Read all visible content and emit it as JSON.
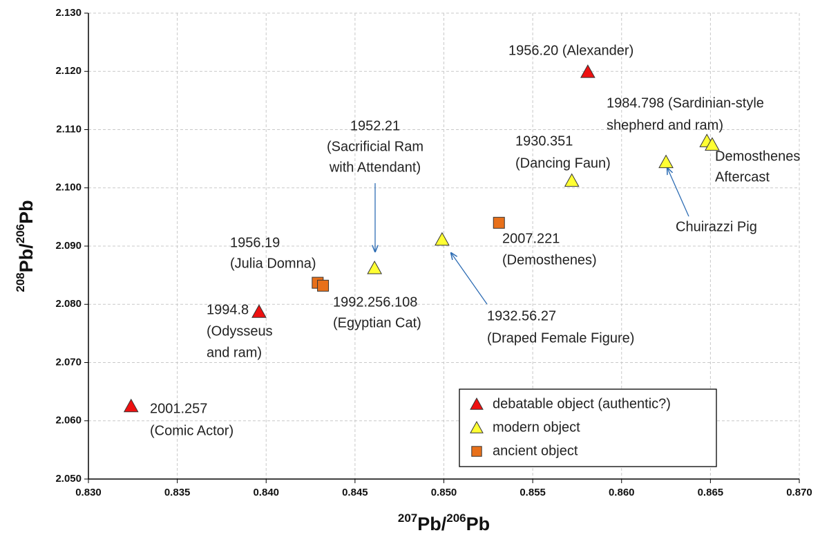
{
  "chart_data": {
    "type": "scatter",
    "xlabel": [
      "207",
      "Pb/",
      "206",
      "Pb"
    ],
    "ylabel": [
      "208",
      "Pb/",
      "206",
      "Pb"
    ],
    "xlim": [
      0.83,
      0.87
    ],
    "ylim": [
      2.05,
      2.13
    ],
    "xticks": [
      {
        "value": 0.83,
        "label": "0.830"
      },
      {
        "value": 0.835,
        "label": "0.835"
      },
      {
        "value": 0.84,
        "label": "0.840"
      },
      {
        "value": 0.845,
        "label": "0.845"
      },
      {
        "value": 0.85,
        "label": "0.850"
      },
      {
        "value": 0.855,
        "label": "0.855"
      },
      {
        "value": 0.86,
        "label": "0.860"
      },
      {
        "value": 0.865,
        "label": "0.865"
      },
      {
        "value": 0.87,
        "label": "0.870"
      }
    ],
    "yticks": [
      {
        "value": 2.05,
        "label": "2.050"
      },
      {
        "value": 2.06,
        "label": "2.060"
      },
      {
        "value": 2.07,
        "label": "2.070"
      },
      {
        "value": 2.08,
        "label": "2.080"
      },
      {
        "value": 2.09,
        "label": "2.090"
      },
      {
        "value": 2.1,
        "label": "2.100"
      },
      {
        "value": 2.11,
        "label": "2.110"
      },
      {
        "value": 2.12,
        "label": "2.120"
      },
      {
        "value": 2.13,
        "label": "2.130"
      }
    ],
    "grid": true,
    "legend": "lower right",
    "series": [
      {
        "name": "debatable object (authentic?)",
        "color": "#ee1111",
        "marker": "triangle",
        "x": [
          0.8581,
          0.8396,
          0.8324
        ],
        "values": [
          2.1199,
          2.0787,
          2.0625
        ]
      },
      {
        "name": "modern object",
        "color": "#ffff33",
        "marker": "triangle",
        "x": [
          0.8461,
          0.8499,
          0.8572,
          0.8625,
          0.8648,
          0.8651
        ],
        "values": [
          2.0862,
          2.0911,
          2.1012,
          2.1044,
          2.108,
          2.1074
        ]
      },
      {
        "name": "ancient object",
        "color": "#e8701a",
        "marker": "square",
        "x": [
          0.8531,
          0.8429,
          0.8432
        ],
        "values": [
          2.094,
          2.0837,
          2.0832
        ]
      }
    ],
    "annotations": [
      [
        "1956.20 (Alexander)"
      ],
      [
        "1984.798 (Sardinian-style",
        "shepherd and ram)"
      ],
      [
        "1952.21",
        "(Sacrificial Ram",
        "with Attendant)"
      ],
      [
        "1930.351",
        "(Dancing Faun)"
      ],
      [
        "Demosthenes",
        "Aftercast"
      ],
      [
        "Chuirazzi Pig"
      ],
      [
        "1956.19",
        "(Julia Domna)"
      ],
      [
        "2007.221",
        "(Demosthenes)"
      ],
      [
        "1992.256.108",
        "(Egyptian Cat)"
      ],
      [
        "1994.8",
        "(Odysseus",
        "and ram)"
      ],
      [
        "1932.56.27",
        "(Draped Female Figure)"
      ],
      [
        "2001.257",
        "(Comic Actor)"
      ]
    ]
  }
}
